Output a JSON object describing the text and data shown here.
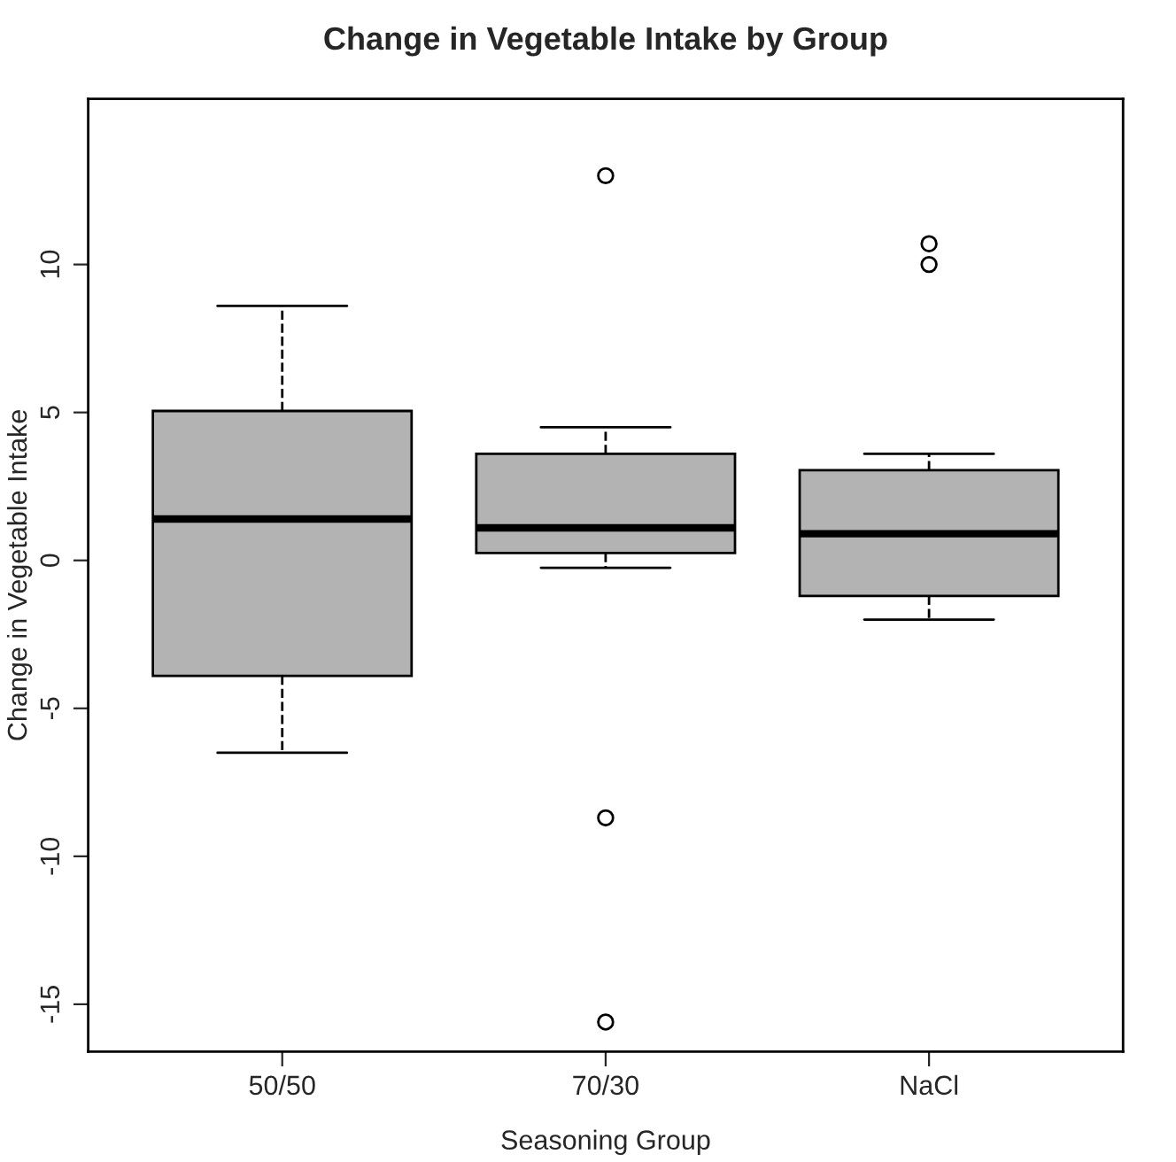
{
  "chart_data": {
    "type": "box",
    "title": "Change in Vegetable Intake by Group",
    "xlabel": "Seasoning Group",
    "ylabel": "Change in Vegetable Intake",
    "categories": [
      "50/50",
      "70/30",
      "NaCl"
    ],
    "color": "#b3b3b3",
    "boxes": [
      {
        "low": -6.5,
        "q1": -3.9,
        "median": 1.4,
        "q3": 5.05,
        "high": 8.6
      },
      {
        "low": -0.25,
        "q1": 0.25,
        "median": 1.1,
        "q3": 3.6,
        "high": 4.5,
        "outliers": [
          13.0,
          -8.7,
          -15.6
        ]
      },
      {
        "low": -2.0,
        "q1": -1.2,
        "median": 0.9,
        "q3": 3.05,
        "high": 3.6,
        "outliers": [
          10.7,
          10.0
        ]
      }
    ],
    "ylim": [
      -16.6,
      15.6
    ],
    "yticks": [
      -15,
      -10,
      -5,
      0,
      5,
      10
    ],
    "grid": false,
    "line_style": "dashed"
  }
}
